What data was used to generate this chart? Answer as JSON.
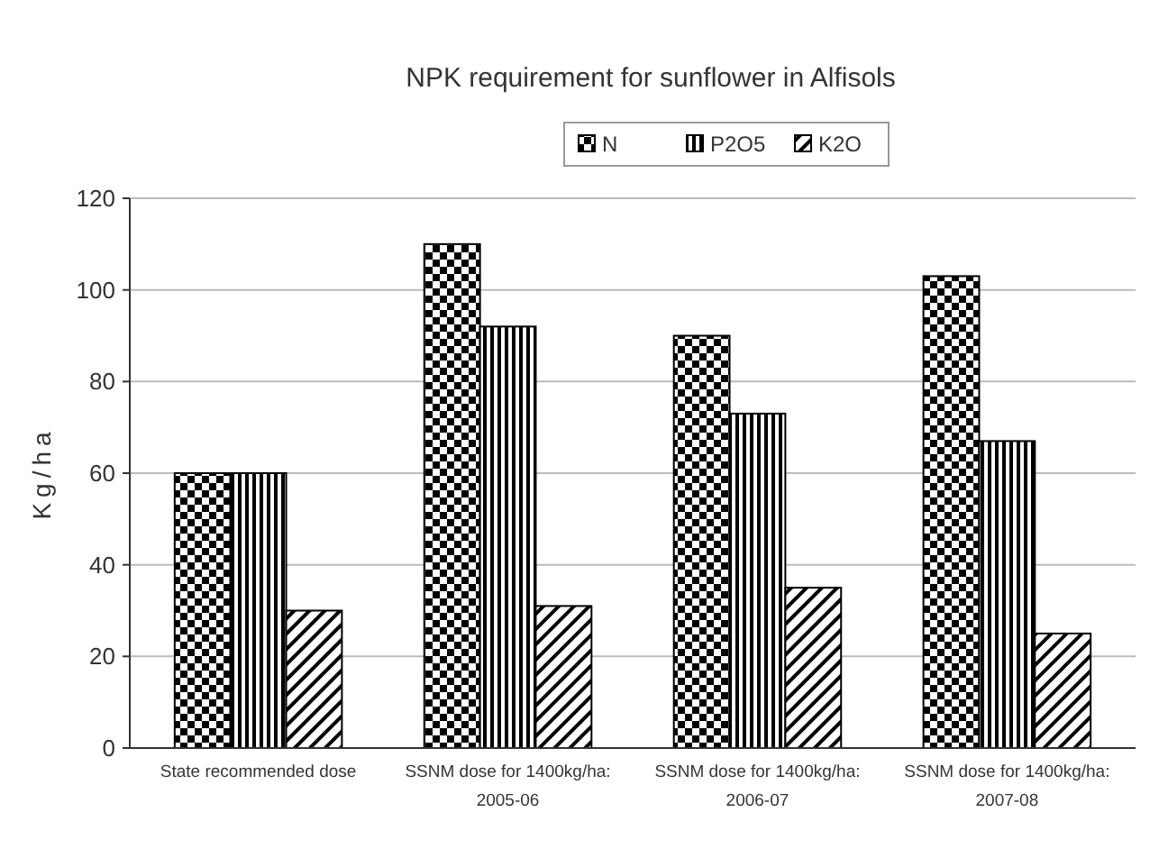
{
  "chart_data": {
    "type": "bar",
    "title": "NPK requirement for sunflower in Alfisols",
    "ylabel": "Kg/ha",
    "categories": [
      "State recommended dose",
      "SSNM dose for 1400kg/ha: 2005-06",
      "SSNM dose for 1400kg/ha: 2006-07",
      "SSNM dose for 1400kg/ha: 2007-08"
    ],
    "series": [
      {
        "name": "N",
        "color": "#000000",
        "values": [
          60,
          110,
          90,
          103
        ]
      },
      {
        "name": "P2O5",
        "color": "#000000",
        "values": [
          60,
          92,
          73,
          67
        ]
      },
      {
        "name": "K2O",
        "color": "#000000",
        "values": [
          30,
          31,
          35,
          25
        ]
      }
    ],
    "ylim": [
      0,
      120
    ],
    "yticks": [
      0,
      20,
      40,
      60,
      80,
      100,
      120
    ],
    "grid": "y",
    "legend": "top"
  }
}
